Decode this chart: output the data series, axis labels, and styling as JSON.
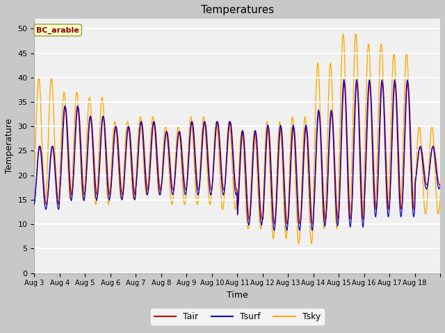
{
  "title": "Temperatures",
  "xlabel": "Time",
  "ylabel": "Temperature",
  "annotation": "BC_arable",
  "ylim": [
    0,
    52
  ],
  "yticks": [
    0,
    5,
    10,
    15,
    20,
    25,
    30,
    35,
    40,
    45,
    50
  ],
  "x_labels": [
    "Aug 3",
    "Aug 4",
    "Aug 5",
    "Aug 6",
    "Aug 7",
    "Aug 8",
    "Aug 9",
    "Aug 10",
    "Aug 11",
    "Aug 12",
    "Aug 13",
    "Aug 14",
    "Aug 15",
    "Aug 16",
    "Aug 17",
    "Aug 18"
  ],
  "color_tair": "#cc0000",
  "color_tsurf": "#0000cc",
  "color_tsky": "#ffaa00",
  "fig_facecolor": "#c8c8c8",
  "plot_facecolor": "#f0f0f0",
  "legend_labels": [
    "Tair",
    "Tsurf",
    "Tsky"
  ],
  "n_days": 16,
  "pts_per_day": 48,
  "figsize": [
    6.4,
    4.8
  ],
  "dpi": 100
}
